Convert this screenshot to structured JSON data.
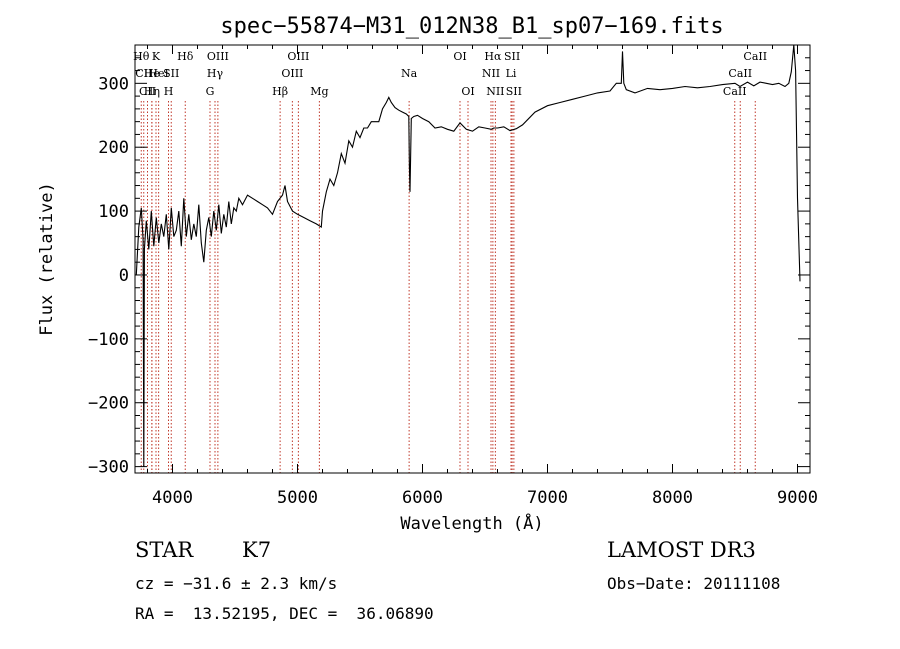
{
  "chart_data": {
    "type": "line",
    "title": "spec−55874−M31_012N38_B1_sp07−169.fits",
    "xlabel": "Wavelength (Å)",
    "ylabel": "Flux (relative)",
    "xlim": [
      3700,
      9100
    ],
    "ylim": [
      -310,
      360
    ],
    "xticks": [
      {
        "value": 4000,
        "label": "4000"
      },
      {
        "value": 5000,
        "label": "5000"
      },
      {
        "value": 6000,
        "label": "6000"
      },
      {
        "value": 7000,
        "label": "7000"
      },
      {
        "value": 8000,
        "label": "8000"
      },
      {
        "value": 9000,
        "label": "9000"
      }
    ],
    "yticks": [
      {
        "value": -300,
        "label": "−300"
      },
      {
        "value": -200,
        "label": "−200"
      },
      {
        "value": -100,
        "label": "−100"
      },
      {
        "value": 0,
        "label": "0"
      },
      {
        "value": 100,
        "label": "100"
      },
      {
        "value": 200,
        "label": "200"
      },
      {
        "value": 300,
        "label": "300"
      }
    ],
    "series": [
      {
        "x": [
          3710,
          3730,
          3750,
          3765,
          3770,
          3775,
          3790,
          3810,
          3830,
          3850,
          3870,
          3890,
          3910,
          3930,
          3950,
          3970,
          3990,
          4010,
          4030,
          4050,
          4070,
          4090,
          4110,
          4130,
          4150,
          4170,
          4190,
          4210,
          4230,
          4250,
          4270,
          4290,
          4310,
          4330,
          4350,
          4370,
          4390,
          4410,
          4430,
          4450,
          4470,
          4490,
          4510,
          4530,
          4560,
          4600,
          4640,
          4680,
          4720,
          4760,
          4800,
          4840,
          4880,
          4900,
          4920,
          4960,
          5000,
          5050,
          5100,
          5150,
          5190,
          5200,
          5230,
          5260,
          5290,
          5320,
          5350,
          5380,
          5410,
          5440,
          5470,
          5500,
          5530,
          5560,
          5590,
          5620,
          5650,
          5680,
          5710,
          5730,
          5750,
          5780,
          5810,
          5840,
          5870,
          5890,
          5895,
          5900,
          5910,
          5930,
          5960,
          6000,
          6050,
          6100,
          6150,
          6200,
          6250,
          6300,
          6350,
          6400,
          6450,
          6500,
          6550,
          6570,
          6600,
          6650,
          6700,
          6750,
          6800,
          6900,
          7000,
          7100,
          7200,
          7300,
          7400,
          7500,
          7550,
          7590,
          7600,
          7610,
          7630,
          7700,
          7800,
          7900,
          8000,
          8100,
          8200,
          8300,
          8400,
          8500,
          8540,
          8600,
          8650,
          8700,
          8750,
          8800,
          8850,
          8900,
          8930,
          8950,
          8970,
          8985,
          9000,
          9020
        ],
        "y": [
          0,
          75,
          105,
          55,
          -300,
          40,
          85,
          40,
          100,
          45,
          90,
          50,
          80,
          60,
          95,
          40,
          105,
          60,
          70,
          100,
          45,
          120,
          60,
          95,
          55,
          80,
          60,
          110,
          50,
          20,
          70,
          90,
          60,
          100,
          70,
          110,
          65,
          95,
          75,
          115,
          80,
          105,
          100,
          120,
          110,
          125,
          120,
          115,
          110,
          105,
          95,
          115,
          125,
          140,
          115,
          100,
          95,
          90,
          85,
          80,
          75,
          100,
          130,
          150,
          140,
          160,
          190,
          175,
          210,
          200,
          225,
          215,
          230,
          230,
          240,
          240,
          240,
          260,
          270,
          278,
          270,
          262,
          258,
          255,
          252,
          248,
          170,
          130,
          245,
          248,
          250,
          245,
          240,
          230,
          232,
          228,
          225,
          238,
          228,
          225,
          232,
          230,
          228,
          230,
          230,
          232,
          226,
          229,
          235,
          255,
          265,
          270,
          275,
          280,
          285,
          288,
          300,
          300,
          350,
          300,
          290,
          285,
          292,
          290,
          292,
          295,
          293,
          295,
          298,
          300,
          295,
          302,
          296,
          302,
          300,
          298,
          300,
          295,
          300,
          318,
          360,
          320,
          120,
          -10
        ]
      }
    ],
    "line_markers": [
      {
        "wavelength": 3750,
        "label": "Hθ",
        "row": 0
      },
      {
        "wavelength": 3770,
        "label": "CII",
        "row": 1
      },
      {
        "wavelength": 3800,
        "label": "CII",
        "row": 2
      },
      {
        "wavelength": 3835,
        "label": "He",
        "row": 1
      },
      {
        "wavelength": 3835,
        "label": "Hη",
        "row": 2
      },
      {
        "wavelength": 3868,
        "label": "K",
        "row": 0
      },
      {
        "wavelength": 3889,
        "label": "HeI",
        "row": 1
      },
      {
        "wavelength": 3968,
        "label": "H",
        "row": 2
      },
      {
        "wavelength": 3990,
        "label": "SII",
        "row": 1
      },
      {
        "wavelength": 4102,
        "label": "Hδ",
        "row": 0
      },
      {
        "wavelength": 4300,
        "label": "G",
        "row": 2
      },
      {
        "wavelength": 4340,
        "label": "Hγ",
        "row": 1
      },
      {
        "wavelength": 4363,
        "label": "OIII",
        "row": 0
      },
      {
        "wavelength": 4861,
        "label": "Hβ",
        "row": 2
      },
      {
        "wavelength": 4959,
        "label": "OIII",
        "row": 1
      },
      {
        "wavelength": 5007,
        "label": "OIII",
        "row": 0
      },
      {
        "wavelength": 5175,
        "label": "Mg",
        "row": 2
      },
      {
        "wavelength": 5893,
        "label": "Na",
        "row": 1
      },
      {
        "wavelength": 6300,
        "label": "OI",
        "row": 0
      },
      {
        "wavelength": 6364,
        "label": "OI",
        "row": 2
      },
      {
        "wavelength": 6548,
        "label": "NII",
        "row": 1
      },
      {
        "wavelength": 6563,
        "label": "Hα",
        "row": 0
      },
      {
        "wavelength": 6583,
        "label": "NII",
        "row": 2
      },
      {
        "wavelength": 6708,
        "label": "Li",
        "row": 1
      },
      {
        "wavelength": 6717,
        "label": "SII",
        "row": 0
      },
      {
        "wavelength": 6731,
        "label": "SII",
        "row": 2
      },
      {
        "wavelength": 8498,
        "label": "CaII",
        "row": 2
      },
      {
        "wavelength": 8542,
        "label": "CaII",
        "row": 1
      },
      {
        "wavelength": 8662,
        "label": "CaII",
        "row": 0
      }
    ]
  },
  "info": {
    "class": "STAR",
    "subclass": "K7",
    "survey": "LAMOST DR3",
    "cz": "cz = −31.6 ± 2.3 km/s",
    "obs_date": "Obs−Date: 20111108",
    "coords": "RA =  13.52195, DEC =  36.06890"
  },
  "colors": {
    "spectrum": "#000000",
    "marker": "#c0392b",
    "axis": "#000000"
  }
}
